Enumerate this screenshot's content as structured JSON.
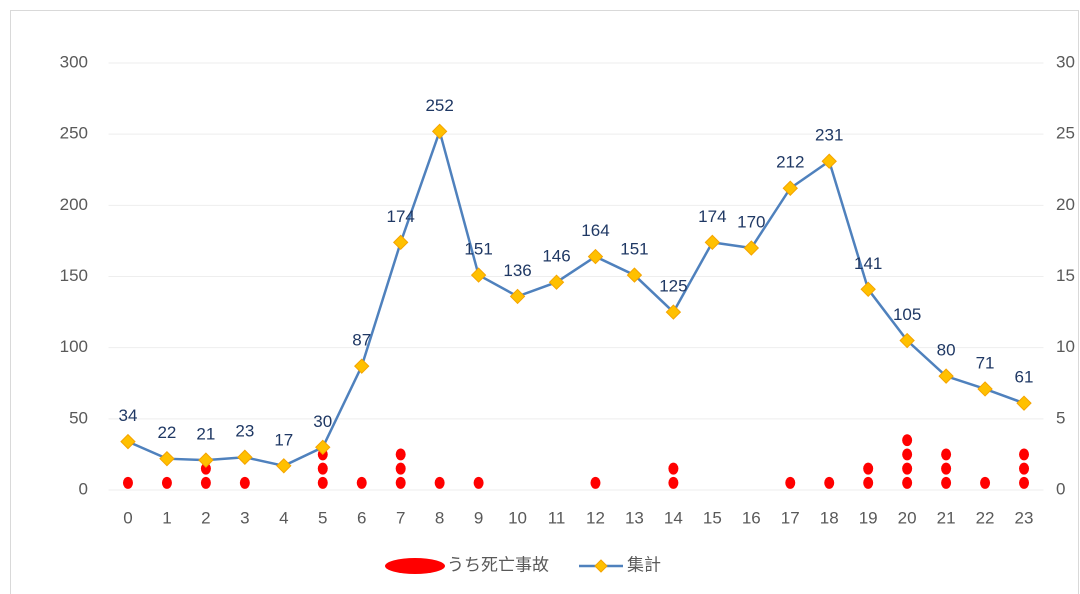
{
  "chart_data": {
    "type": "line",
    "categories": [
      "0",
      "1",
      "2",
      "3",
      "4",
      "5",
      "6",
      "7",
      "8",
      "9",
      "10",
      "11",
      "12",
      "13",
      "14",
      "15",
      "16",
      "17",
      "18",
      "19",
      "20",
      "21",
      "22",
      "23"
    ],
    "series": [
      {
        "name": "うち死亡事故",
        "type": "dot-stack",
        "axis": "y2",
        "color": "#ff0000",
        "values": [
          1,
          1,
          2,
          1,
          0,
          3,
          1,
          3,
          1,
          1,
          0,
          0,
          1,
          0,
          2,
          0,
          0,
          1,
          1,
          2,
          4,
          3,
          1,
          3
        ]
      },
      {
        "name": "集計",
        "color": "#4f81bd",
        "marker_color": "#ffc000",
        "values": [
          34,
          22,
          21,
          23,
          17,
          30,
          87,
          174,
          252,
          151,
          136,
          146,
          164,
          151,
          125,
          174,
          170,
          212,
          231,
          141,
          105,
          80,
          71,
          61
        ]
      }
    ],
    "ylim": [
      0,
      300
    ],
    "yticks": [
      0,
      50,
      100,
      150,
      200,
      250,
      300
    ],
    "y2lim": [
      0,
      30
    ],
    "y2ticks": [
      0,
      5,
      10,
      15,
      20,
      25,
      30
    ],
    "grid": true,
    "legend": "bottom"
  }
}
